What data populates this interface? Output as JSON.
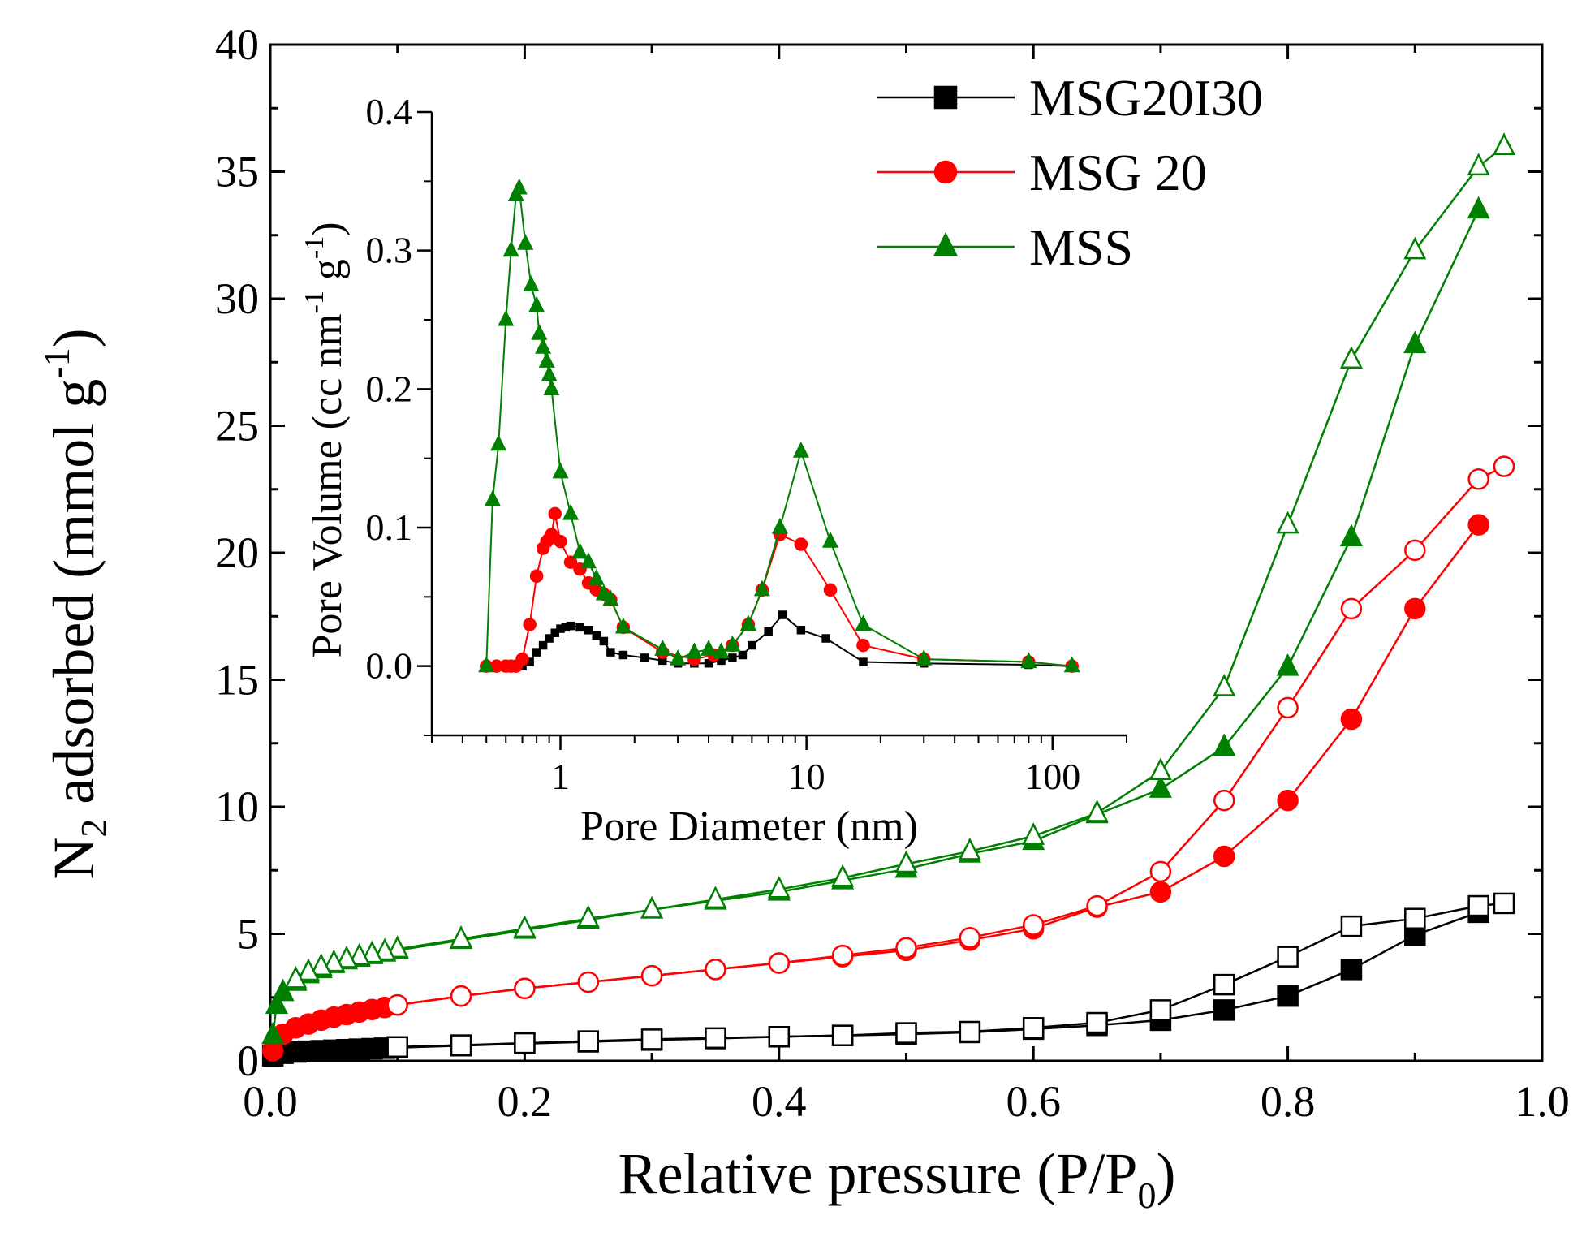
{
  "chart_data": {
    "type": "line",
    "main": {
      "xlabel_main": "Relative pressure (P/P",
      "xlabel_sub": "0",
      "xlabel_close": ")",
      "ylabel_pre": "N",
      "ylabel_sub": "2",
      "ylabel_main": " adsorbed (mmol g",
      "ylabel_sup": "-1",
      "ylabel_close": ")",
      "xlim": [
        0.0,
        1.0
      ],
      "ylim": [
        0,
        40
      ],
      "xticks": [
        0.0,
        0.2,
        0.4,
        0.6,
        0.8,
        1.0
      ],
      "xtick_labels": [
        "0.0",
        "0.2",
        "0.4",
        "0.6",
        "0.8",
        "1.0"
      ],
      "yticks": [
        0,
        5,
        10,
        15,
        20,
        25,
        30,
        35,
        40
      ],
      "ytick_labels": [
        "0",
        "5",
        "10",
        "15",
        "20",
        "25",
        "30",
        "35",
        "40"
      ],
      "series": [
        {
          "name": "MSG20I30",
          "color": "#000000",
          "marker": "square",
          "adsorption": {
            "x": [
              0.002,
              0.01,
              0.02,
              0.03,
              0.04,
              0.05,
              0.06,
              0.07,
              0.08,
              0.09,
              0.1,
              0.15,
              0.2,
              0.25,
              0.3,
              0.35,
              0.4,
              0.45,
              0.5,
              0.55,
              0.6,
              0.65,
              0.7,
              0.75,
              0.8,
              0.85,
              0.9,
              0.95
            ],
            "y": [
              0.2,
              0.3,
              0.35,
              0.38,
              0.4,
              0.42,
              0.44,
              0.46,
              0.48,
              0.5,
              0.52,
              0.6,
              0.68,
              0.75,
              0.82,
              0.88,
              0.95,
              1.0,
              1.05,
              1.12,
              1.25,
              1.4,
              1.6,
              2.0,
              2.55,
              3.6,
              4.95,
              5.85
            ]
          },
          "desorption": {
            "x": [
              0.97,
              0.95,
              0.9,
              0.85,
              0.8,
              0.75,
              0.7,
              0.65,
              0.6,
              0.55,
              0.5,
              0.45,
              0.4,
              0.35,
              0.3,
              0.25,
              0.2,
              0.15,
              0.1
            ],
            "y": [
              6.2,
              6.1,
              5.6,
              5.3,
              4.1,
              3.0,
              2.0,
              1.5,
              1.3,
              1.15,
              1.1,
              1.0,
              0.95,
              0.9,
              0.85,
              0.78,
              0.7,
              0.62,
              0.55
            ]
          }
        },
        {
          "name": "MSG 20",
          "color": "#ff0000",
          "marker": "circle",
          "adsorption": {
            "x": [
              0.002,
              0.01,
              0.02,
              0.03,
              0.04,
              0.05,
              0.06,
              0.07,
              0.08,
              0.09,
              0.1,
              0.15,
              0.2,
              0.25,
              0.3,
              0.35,
              0.4,
              0.45,
              0.5,
              0.55,
              0.6,
              0.65,
              0.7,
              0.75,
              0.8,
              0.85,
              0.9,
              0.95
            ],
            "y": [
              0.4,
              1.05,
              1.3,
              1.45,
              1.6,
              1.72,
              1.82,
              1.92,
              2.02,
              2.1,
              2.2,
              2.55,
              2.85,
              3.1,
              3.35,
              3.6,
              3.85,
              4.1,
              4.35,
              4.75,
              5.2,
              6.05,
              6.65,
              8.05,
              10.25,
              13.45,
              17.8,
              21.1
            ]
          },
          "desorption": {
            "x": [
              0.97,
              0.95,
              0.9,
              0.85,
              0.8,
              0.75,
              0.7,
              0.65,
              0.6,
              0.55,
              0.5,
              0.45,
              0.4,
              0.35,
              0.3,
              0.25,
              0.2,
              0.15,
              0.1
            ],
            "y": [
              23.4,
              22.9,
              20.1,
              17.8,
              13.9,
              10.25,
              7.45,
              6.1,
              5.35,
              4.85,
              4.45,
              4.15,
              3.85,
              3.6,
              3.35,
              3.1,
              2.85,
              2.55,
              2.2
            ]
          }
        },
        {
          "name": "MSS",
          "color": "#008000",
          "marker": "triangle",
          "adsorption": {
            "x": [
              0.002,
              0.005,
              0.01,
              0.02,
              0.03,
              0.04,
              0.05,
              0.06,
              0.07,
              0.08,
              0.09,
              0.1,
              0.15,
              0.2,
              0.25,
              0.3,
              0.35,
              0.4,
              0.45,
              0.5,
              0.55,
              0.6,
              0.65,
              0.7,
              0.75,
              0.8,
              0.85,
              0.9,
              0.95
            ],
            "y": [
              1.0,
              2.2,
              2.7,
              3.1,
              3.4,
              3.6,
              3.8,
              3.95,
              4.05,
              4.15,
              4.25,
              4.35,
              4.75,
              5.15,
              5.55,
              5.95,
              6.3,
              6.65,
              7.1,
              7.55,
              8.15,
              8.65,
              9.7,
              10.7,
              12.35,
              15.5,
              20.6,
              28.2,
              33.5
            ]
          },
          "desorption": {
            "x": [
              0.97,
              0.95,
              0.9,
              0.85,
              0.8,
              0.75,
              0.7,
              0.65,
              0.6,
              0.55,
              0.5,
              0.45,
              0.4,
              0.35,
              0.3,
              0.25,
              0.2,
              0.15,
              0.1,
              0.09,
              0.08,
              0.07,
              0.06,
              0.05,
              0.04,
              0.03,
              0.02
            ],
            "y": [
              36.0,
              35.2,
              31.9,
              27.6,
              21.1,
              14.7,
              11.4,
              9.75,
              8.85,
              8.25,
              7.75,
              7.2,
              6.75,
              6.35,
              5.95,
              5.6,
              5.2,
              4.8,
              4.4,
              4.3,
              4.2,
              4.1,
              4.0,
              3.85,
              3.7,
              3.5,
              3.2
            ]
          }
        }
      ]
    },
    "inset": {
      "type": "line",
      "xscale": "log",
      "xlabel": "Pore Diameter (nm)",
      "ylabel_main": "Pore Volume (cc nm",
      "ylabel_sup1": "-1",
      "ylabel_mid": " g",
      "ylabel_sup2": "-1",
      "ylabel_close": ")",
      "xlim": [
        0.3,
        200
      ],
      "ylim": [
        -0.05,
        0.4
      ],
      "xticks": [
        1,
        10,
        100
      ],
      "xtick_labels": [
        "1",
        "10",
        "100"
      ],
      "yticks": [
        0.0,
        0.1,
        0.2,
        0.3,
        0.4
      ],
      "ytick_labels": [
        "0.0",
        "0.1",
        "0.2",
        "0.3",
        "0.4"
      ],
      "series": [
        {
          "name": "MSG20I30",
          "color": "#000000",
          "marker": "square",
          "x": [
            0.5,
            0.55,
            0.6,
            0.63,
            0.66,
            0.7,
            0.75,
            0.8,
            0.85,
            0.9,
            0.95,
            1.0,
            1.05,
            1.1,
            1.2,
            1.3,
            1.4,
            1.5,
            1.6,
            1.8,
            2.2,
            2.6,
            3.0,
            3.5,
            4.0,
            4.5,
            5.0,
            5.5,
            6.0,
            7.0,
            8.0,
            9.5,
            12.0,
            17.0,
            30.0,
            80.0,
            120.0
          ],
          "y": [
            0.0,
            0.0,
            0.0,
            0.0,
            0.0,
            0.0,
            0.003,
            0.01,
            0.015,
            0.02,
            0.024,
            0.027,
            0.028,
            0.029,
            0.028,
            0.026,
            0.022,
            0.018,
            0.01,
            0.008,
            0.006,
            0.004,
            0.002,
            0.002,
            0.002,
            0.004,
            0.006,
            0.008,
            0.015,
            0.025,
            0.037,
            0.026,
            0.02,
            0.003,
            0.002,
            0.001,
            0.0
          ]
        },
        {
          "name": "MSG 20",
          "color": "#ff0000",
          "marker": "circle",
          "x": [
            0.5,
            0.55,
            0.6,
            0.63,
            0.66,
            0.7,
            0.75,
            0.8,
            0.85,
            0.88,
            0.9,
            0.92,
            0.95,
            1.0,
            1.1,
            1.2,
            1.3,
            1.4,
            1.5,
            1.6,
            1.8,
            2.6,
            3.5,
            4.2,
            5.0,
            5.8,
            6.6,
            7.8,
            9.5,
            12.5,
            17.0,
            30.0,
            80.0,
            120.0
          ],
          "y": [
            0.0,
            0.0,
            0.0,
            0.0,
            0.0,
            0.005,
            0.03,
            0.065,
            0.085,
            0.09,
            0.092,
            0.095,
            0.11,
            0.09,
            0.075,
            0.07,
            0.06,
            0.055,
            0.052,
            0.048,
            0.028,
            0.01,
            0.005,
            0.008,
            0.015,
            0.03,
            0.055,
            0.095,
            0.088,
            0.055,
            0.015,
            0.005,
            0.003,
            0.0
          ]
        },
        {
          "name": "MSS",
          "color": "#008000",
          "marker": "triangle",
          "x": [
            0.5,
            0.53,
            0.56,
            0.6,
            0.63,
            0.66,
            0.68,
            0.72,
            0.76,
            0.8,
            0.82,
            0.85,
            0.88,
            0.9,
            0.92,
            1.0,
            1.1,
            1.2,
            1.3,
            1.4,
            1.5,
            1.6,
            1.8,
            2.6,
            3.0,
            3.5,
            4.0,
            4.5,
            5.0,
            5.8,
            6.6,
            7.8,
            9.5,
            12.5,
            17.0,
            30.0,
            80.0,
            120.0
          ],
          "y": [
            0.0,
            0.12,
            0.16,
            0.25,
            0.3,
            0.34,
            0.345,
            0.305,
            0.275,
            0.26,
            0.24,
            0.23,
            0.22,
            0.21,
            0.2,
            0.14,
            0.11,
            0.082,
            0.075,
            0.063,
            0.052,
            0.048,
            0.028,
            0.012,
            0.005,
            0.01,
            0.012,
            0.01,
            0.015,
            0.03,
            0.055,
            0.1,
            0.155,
            0.09,
            0.03,
            0.005,
            0.003,
            0.0
          ]
        }
      ]
    },
    "legend": {
      "placement": "top-right",
      "entries": [
        "MSG20I30",
        "MSG 20",
        "MSS"
      ]
    }
  }
}
